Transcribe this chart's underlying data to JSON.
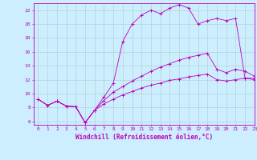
{
  "background_color": "#cceeff",
  "grid_color": "#aacccc",
  "line_color": "#bb00bb",
  "marker": "+",
  "xlim": [
    -0.5,
    23
  ],
  "ylim": [
    5.5,
    23
  ],
  "xlabel": "Windchill (Refroidissement éolien,°C)",
  "xticks": [
    0,
    1,
    2,
    3,
    4,
    5,
    6,
    7,
    8,
    9,
    10,
    11,
    12,
    13,
    14,
    15,
    16,
    17,
    18,
    19,
    20,
    21,
    22,
    23
  ],
  "yticks": [
    6,
    8,
    10,
    12,
    14,
    16,
    18,
    20,
    22
  ],
  "series1_x": [
    0,
    1,
    2,
    3,
    4,
    5,
    6,
    7,
    8,
    9,
    10,
    11,
    12,
    13,
    14,
    15,
    16,
    17,
    18,
    19,
    20,
    21,
    22,
    23
  ],
  "series1_y": [
    9.2,
    8.3,
    8.9,
    8.2,
    8.1,
    5.8,
    7.6,
    9.5,
    11.5,
    17.5,
    20.0,
    21.3,
    22.0,
    21.5,
    22.3,
    22.8,
    22.3,
    20.0,
    20.5,
    20.8,
    20.5,
    20.8,
    12.2,
    12.0
  ],
  "series2_x": [
    0,
    1,
    2,
    3,
    4,
    5,
    6,
    7,
    8,
    9,
    10,
    11,
    12,
    13,
    14,
    15,
    16,
    17,
    18,
    19,
    20,
    21,
    22,
    23
  ],
  "series2_y": [
    9.2,
    8.3,
    8.9,
    8.2,
    8.1,
    5.8,
    7.6,
    9.0,
    10.2,
    11.0,
    11.8,
    12.5,
    13.2,
    13.8,
    14.3,
    14.8,
    15.2,
    15.5,
    15.8,
    13.5,
    13.0,
    13.5,
    13.2,
    12.5
  ],
  "series3_x": [
    0,
    1,
    2,
    3,
    4,
    5,
    6,
    7,
    8,
    9,
    10,
    11,
    12,
    13,
    14,
    15,
    16,
    17,
    18,
    19,
    20,
    21,
    22,
    23
  ],
  "series3_y": [
    9.2,
    8.3,
    8.9,
    8.2,
    8.1,
    5.8,
    7.6,
    8.5,
    9.2,
    9.8,
    10.3,
    10.8,
    11.2,
    11.5,
    11.9,
    12.1,
    12.4,
    12.6,
    12.8,
    12.0,
    11.8,
    12.0,
    12.2,
    12.2
  ],
  "tick_fontsize": 4.5,
  "axis_fontsize": 5.5
}
